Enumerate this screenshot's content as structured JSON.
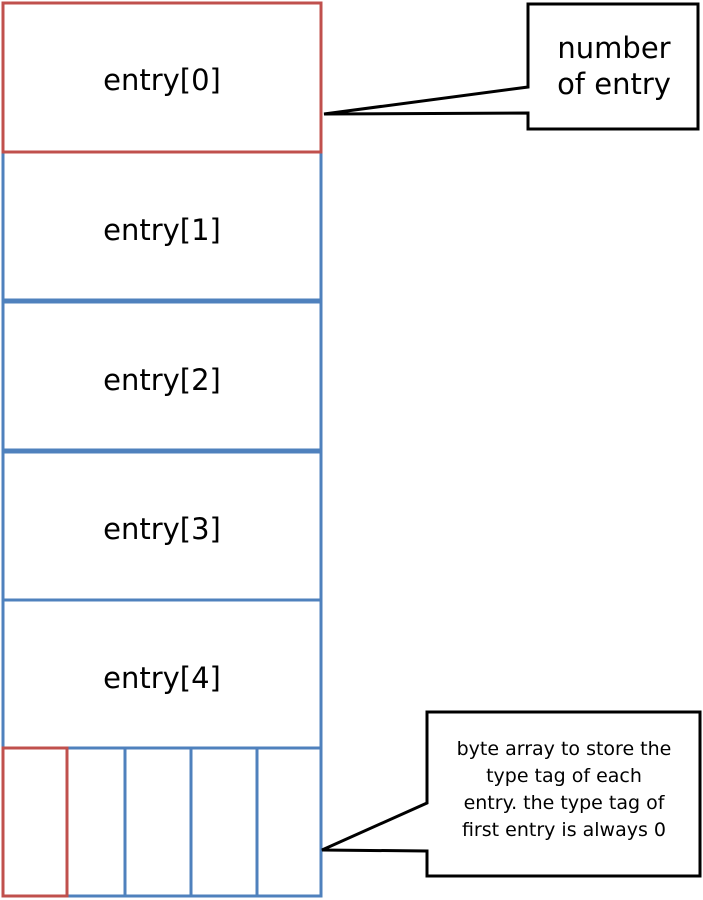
{
  "entries": [
    {
      "label": "entry[0]"
    },
    {
      "label": "entry[1]"
    },
    {
      "label": "entry[2]"
    },
    {
      "label": "entry[3]"
    },
    {
      "label": "entry[4]"
    }
  ],
  "callouts": {
    "number_of_entry_line1": "number",
    "number_of_entry_line2": "of entry",
    "type_tag_line1": "byte array to store the",
    "type_tag_line2": "type tag of each",
    "type_tag_line3": "entry. the type tag of",
    "type_tag_line4": "first entry is always 0"
  },
  "colors": {
    "red": "#c0504d",
    "blue": "#4f81bd",
    "black": "#000000"
  }
}
